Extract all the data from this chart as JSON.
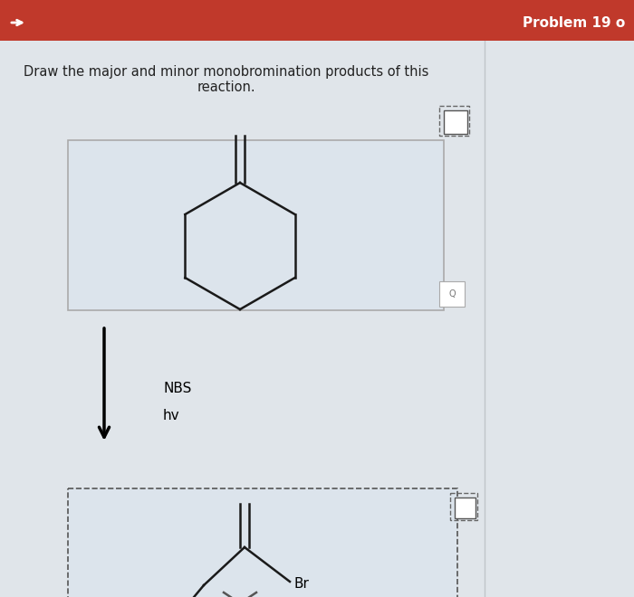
{
  "title_text": "Draw the major and minor monobromination products of this\nreaction.",
  "header_text": "Problem 19 o",
  "header_bg": "#c0392b",
  "page_bg": "#e0e5ea",
  "content_bg": "#e8ecf0",
  "box1_bg": "#dce4ec",
  "box1_border": "#aaaaaa",
  "box2_bg": "#dce4ec",
  "nbs_text": "NBS",
  "hv_text": "hv",
  "br_label": "Br",
  "line_color": "#1a1a1a",
  "line_width": 1.8
}
